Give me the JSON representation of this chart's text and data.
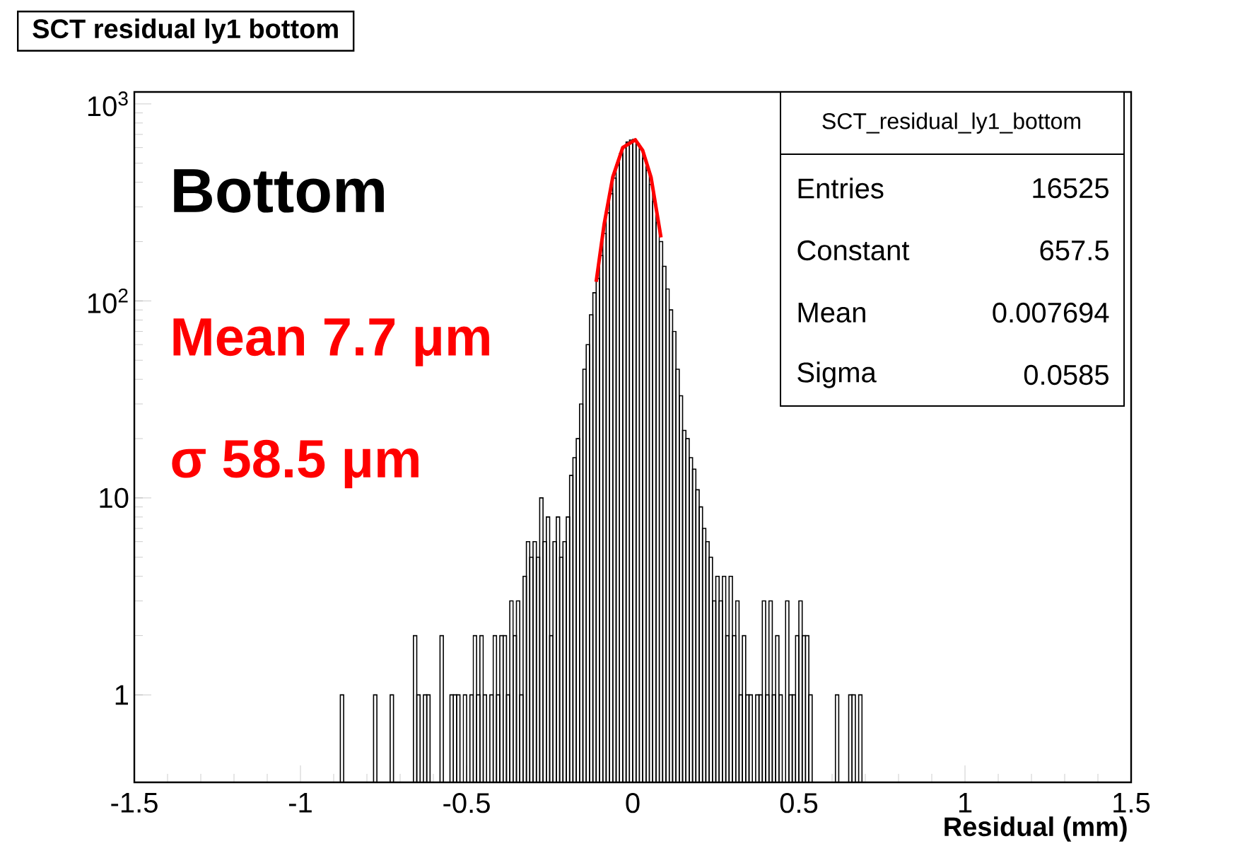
{
  "chart_data": {
    "type": "histogram",
    "title": "SCT residual ly1 bottom",
    "xlabel": "Residual (mm)",
    "series": [
      {
        "color": "#000000",
        "bins": [
          -0.88,
          -0.87,
          -0.86,
          -0.85,
          -0.84,
          -0.83,
          -0.82,
          -0.81,
          -0.8,
          -0.79,
          -0.78,
          -0.77,
          -0.76,
          -0.75,
          -0.74,
          -0.73,
          -0.72,
          -0.71,
          -0.7,
          -0.69,
          -0.68,
          -0.67,
          -0.66,
          -0.65,
          -0.64,
          -0.63,
          -0.62,
          -0.61,
          -0.6,
          -0.59,
          -0.58,
          -0.57,
          -0.56,
          -0.55,
          -0.54,
          -0.53,
          -0.52,
          -0.51,
          -0.5,
          -0.49,
          -0.48,
          -0.47,
          -0.46,
          -0.45,
          -0.44,
          -0.43,
          -0.42,
          -0.41,
          -0.4,
          -0.39,
          -0.38,
          -0.37,
          -0.36,
          -0.35,
          -0.34,
          -0.33,
          -0.32,
          -0.31,
          -0.3,
          -0.29,
          -0.28,
          -0.27,
          -0.26,
          -0.25,
          -0.24,
          -0.23,
          -0.22,
          -0.21,
          -0.2,
          -0.19,
          -0.18,
          -0.17,
          -0.16,
          -0.15,
          -0.14,
          -0.13,
          -0.12,
          -0.11,
          -0.1,
          -0.09,
          -0.08,
          -0.07,
          -0.06,
          -0.05,
          -0.04,
          -0.03,
          -0.02,
          -0.01,
          0.0,
          0.01,
          0.02,
          0.03,
          0.04,
          0.05,
          0.06,
          0.07,
          0.08,
          0.09,
          0.1,
          0.11,
          0.12,
          0.13,
          0.14,
          0.15,
          0.16,
          0.17,
          0.18,
          0.19,
          0.2,
          0.21,
          0.22,
          0.23,
          0.24,
          0.25,
          0.26,
          0.27,
          0.28,
          0.29,
          0.3,
          0.31,
          0.32,
          0.33,
          0.34,
          0.35,
          0.36,
          0.37,
          0.38,
          0.39,
          0.4,
          0.41,
          0.42,
          0.43,
          0.44,
          0.45,
          0.46,
          0.47,
          0.48,
          0.49,
          0.5,
          0.51,
          0.52,
          0.53,
          0.54,
          0.55,
          0.56,
          0.57,
          0.58,
          0.59,
          0.6,
          0.61,
          0.62,
          0.63,
          0.64,
          0.65,
          0.66,
          0.67,
          0.68,
          0.69
        ],
        "values": [
          1,
          null,
          null,
          null,
          null,
          null,
          null,
          null,
          null,
          null,
          1,
          null,
          null,
          null,
          null,
          1,
          null,
          null,
          null,
          null,
          null,
          null,
          2,
          1,
          null,
          1,
          1,
          null,
          null,
          null,
          2,
          null,
          null,
          1,
          1,
          1,
          null,
          1,
          null,
          1,
          2,
          1,
          2,
          1,
          null,
          1,
          2,
          1,
          2,
          2,
          1,
          3,
          2,
          3,
          1,
          4,
          6,
          5,
          6,
          5,
          10,
          6,
          8,
          2,
          6,
          8,
          5,
          6,
          8,
          13,
          16,
          20,
          30,
          45,
          60,
          85,
          110,
          130,
          170,
          220,
          280,
          350,
          420,
          490,
          560,
          600,
          640,
          655,
          660,
          630,
          590,
          530,
          460,
          390,
          320,
          250,
          200,
          150,
          115,
          90,
          70,
          45,
          33,
          22,
          20,
          16,
          14,
          11,
          9,
          7,
          6,
          5,
          3,
          4,
          3,
          4,
          2,
          4,
          2,
          3,
          1,
          2,
          1,
          1,
          null,
          1,
          1,
          3,
          1,
          3,
          1,
          2,
          1,
          null,
          3,
          1,
          1,
          2,
          3,
          2,
          2,
          1,
          null,
          null,
          null,
          null,
          null,
          null,
          null,
          1,
          null,
          null,
          null,
          1,
          1,
          null,
          1
        ]
      },
      {
        "type": "line",
        "color": "#ff0000",
        "x": [
          -0.11,
          -0.086,
          -0.06,
          -0.03,
          0.0077,
          0.03,
          0.055,
          0.085
        ],
        "values": [
          125,
          245,
          425,
          600,
          657.5,
          580,
          425,
          210
        ]
      }
    ],
    "log": "y",
    "xlim": [
      -1.5,
      1.5
    ],
    "ylim": [
      0.36,
      1150
    ],
    "xticks": [
      -1.5,
      -1,
      -0.5,
      0,
      0.5,
      1,
      1.5
    ],
    "yticks": [
      {
        "value": 1,
        "label": "1"
      },
      {
        "value": 10,
        "label": "10"
      },
      {
        "value": 100,
        "label": "10$^{2}$"
      },
      {
        "value": 1000,
        "label": "10$^{3}$"
      }
    ],
    "annotations": [
      "Bottom",
      "Mean 7.7 μm",
      "σ  58.5 μm",
      "SCT_residual_ly1_bottom",
      "Entries",
      "16525",
      "Constant",
      "657.5",
      "Mean",
      "0.007694",
      "Sigma",
      "0.0585"
    ]
  }
}
